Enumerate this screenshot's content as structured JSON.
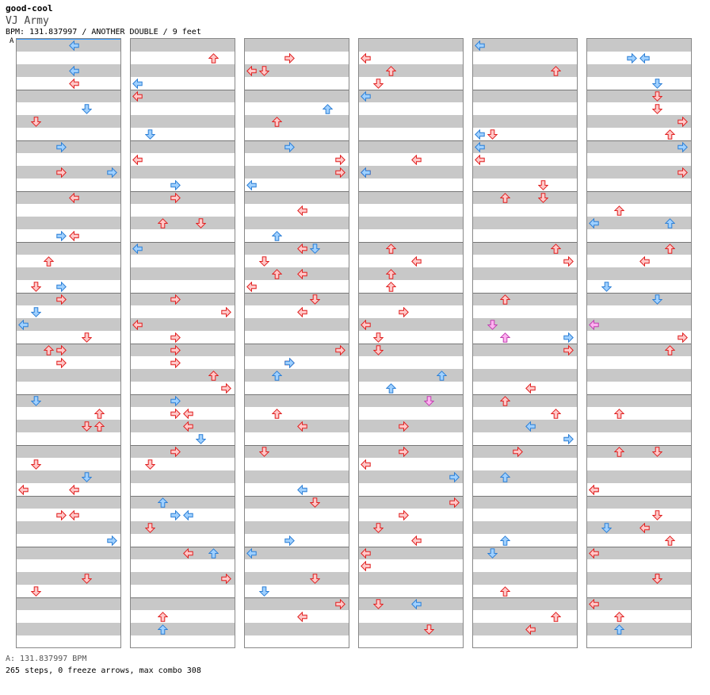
{
  "header": {
    "user": "good-cool",
    "song_title": "VJ Army",
    "meta": "BPM: 131.837997 / ANOTHER DOUBLE / 9 feet",
    "bpm_marker": "A"
  },
  "footer": {
    "bpm_line": "A: 131.837997 BPM",
    "stats": "265 steps, 0 freeze arrows, max combo 308"
  },
  "colors": {
    "red_fill": "#ffc8c8",
    "red_stroke": "#e02020",
    "blue_fill": "#9fd0ff",
    "blue_stroke": "#2c7fd6",
    "pink_fill": "#ffb0f0",
    "pink_stroke": "#c040b0",
    "stripe": "#c8c8c8"
  },
  "icons": [
    "arrow-left-icon",
    "arrow-down-icon",
    "arrow-up-icon",
    "arrow-right-icon"
  ],
  "chart": {
    "columns": 6,
    "measures_per_column": 12,
    "steps_per_measure": 4
  }
}
